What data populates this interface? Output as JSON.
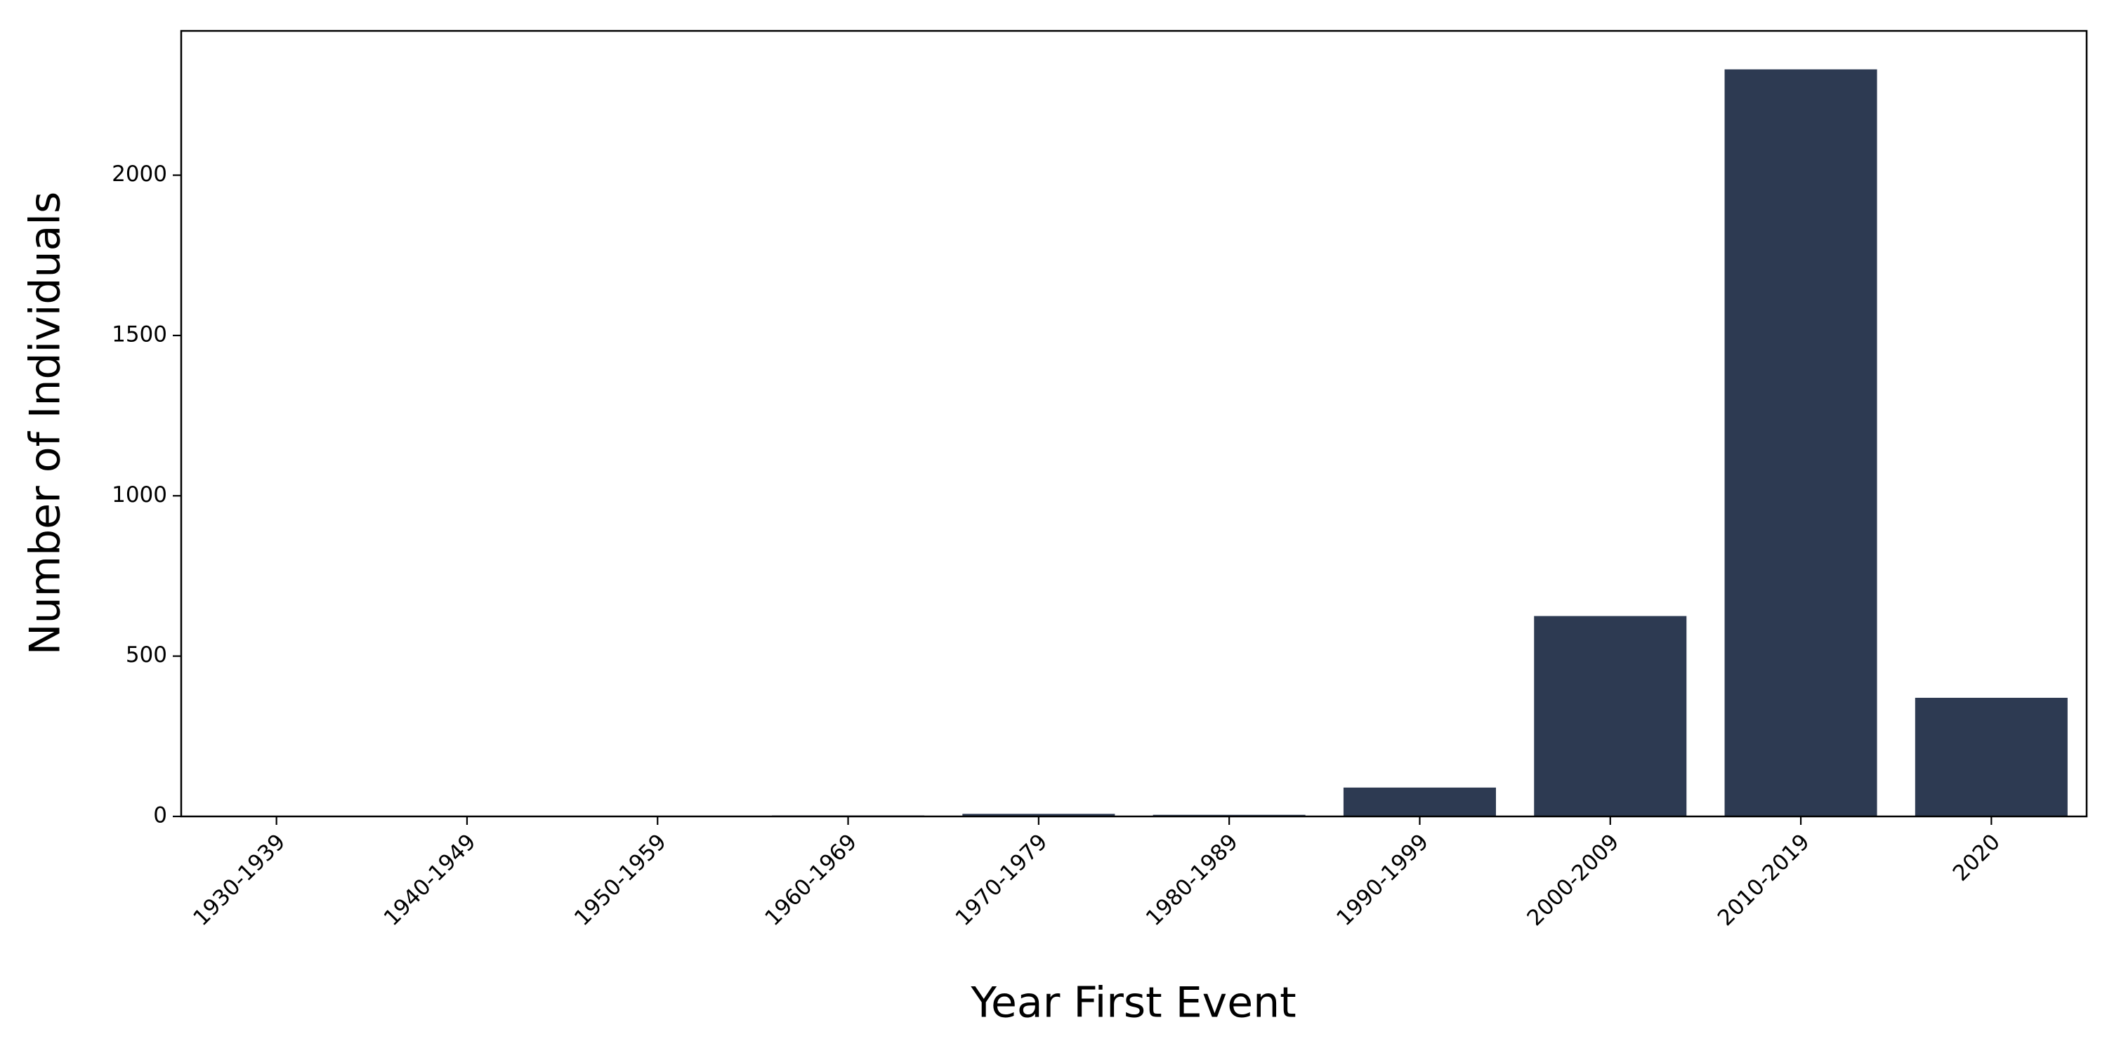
{
  "chart_data": {
    "type": "bar",
    "xlabel": "Year First Event",
    "ylabel": "Number of Individuals",
    "categories": [
      "1930-1939",
      "1940-1949",
      "1950-1959",
      "1960-1969",
      "1970-1979",
      "1980-1989",
      "1990-1999",
      "2000-2009",
      "2010-2019",
      "2020"
    ],
    "values": [
      1,
      1,
      1,
      3,
      8,
      5,
      90,
      625,
      2330,
      370
    ],
    "color": "#2d3a52",
    "ylim": [
      0,
      2450
    ],
    "yticks": [
      0,
      500,
      1000,
      1500,
      2000
    ],
    "grid": false
  }
}
